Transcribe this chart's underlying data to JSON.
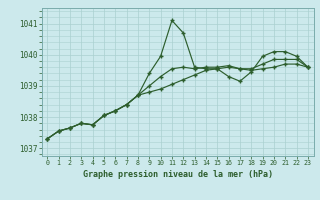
{
  "title": "Graphe pression niveau de la mer (hPa)",
  "bg_color": "#cce9ec",
  "grid_color": "#aad0d0",
  "line_color": "#2d5e2d",
  "xlim": [
    -0.5,
    23.5
  ],
  "ylim": [
    1036.75,
    1041.5
  ],
  "yticks": [
    1037,
    1038,
    1039,
    1040,
    1041
  ],
  "xticks": [
    0,
    1,
    2,
    3,
    4,
    5,
    6,
    7,
    8,
    9,
    10,
    11,
    12,
    13,
    14,
    15,
    16,
    17,
    18,
    19,
    20,
    21,
    22,
    23
  ],
  "hours": [
    0,
    1,
    2,
    3,
    4,
    5,
    6,
    7,
    8,
    9,
    10,
    11,
    12,
    13,
    14,
    15,
    16,
    17,
    18,
    19,
    20,
    21,
    22,
    23
  ],
  "line_spiky": [
    1037.3,
    1037.55,
    1037.65,
    1037.8,
    1037.75,
    1038.05,
    1038.2,
    1038.4,
    1038.7,
    1039.4,
    1039.95,
    1041.1,
    1040.7,
    1039.6,
    1039.55,
    1039.55,
    1039.3,
    1039.15,
    1039.45,
    1039.95,
    1040.1,
    1040.1,
    1039.95,
    1039.6
  ],
  "line_mid": [
    1037.3,
    1037.55,
    1037.65,
    1037.8,
    1037.75,
    1038.05,
    1038.2,
    1038.4,
    1038.7,
    1039.0,
    1039.3,
    1039.55,
    1039.6,
    1039.55,
    1039.6,
    1039.6,
    1039.65,
    1039.55,
    1039.55,
    1039.7,
    1039.85,
    1039.85,
    1039.85,
    1039.6
  ],
  "line_low": [
    1037.3,
    1037.55,
    1037.65,
    1037.8,
    1037.75,
    1038.05,
    1038.2,
    1038.4,
    1038.7,
    1038.8,
    1038.9,
    1039.05,
    1039.2,
    1039.35,
    1039.5,
    1039.55,
    1039.6,
    1039.55,
    1039.5,
    1039.55,
    1039.6,
    1039.7,
    1039.7,
    1039.6
  ]
}
